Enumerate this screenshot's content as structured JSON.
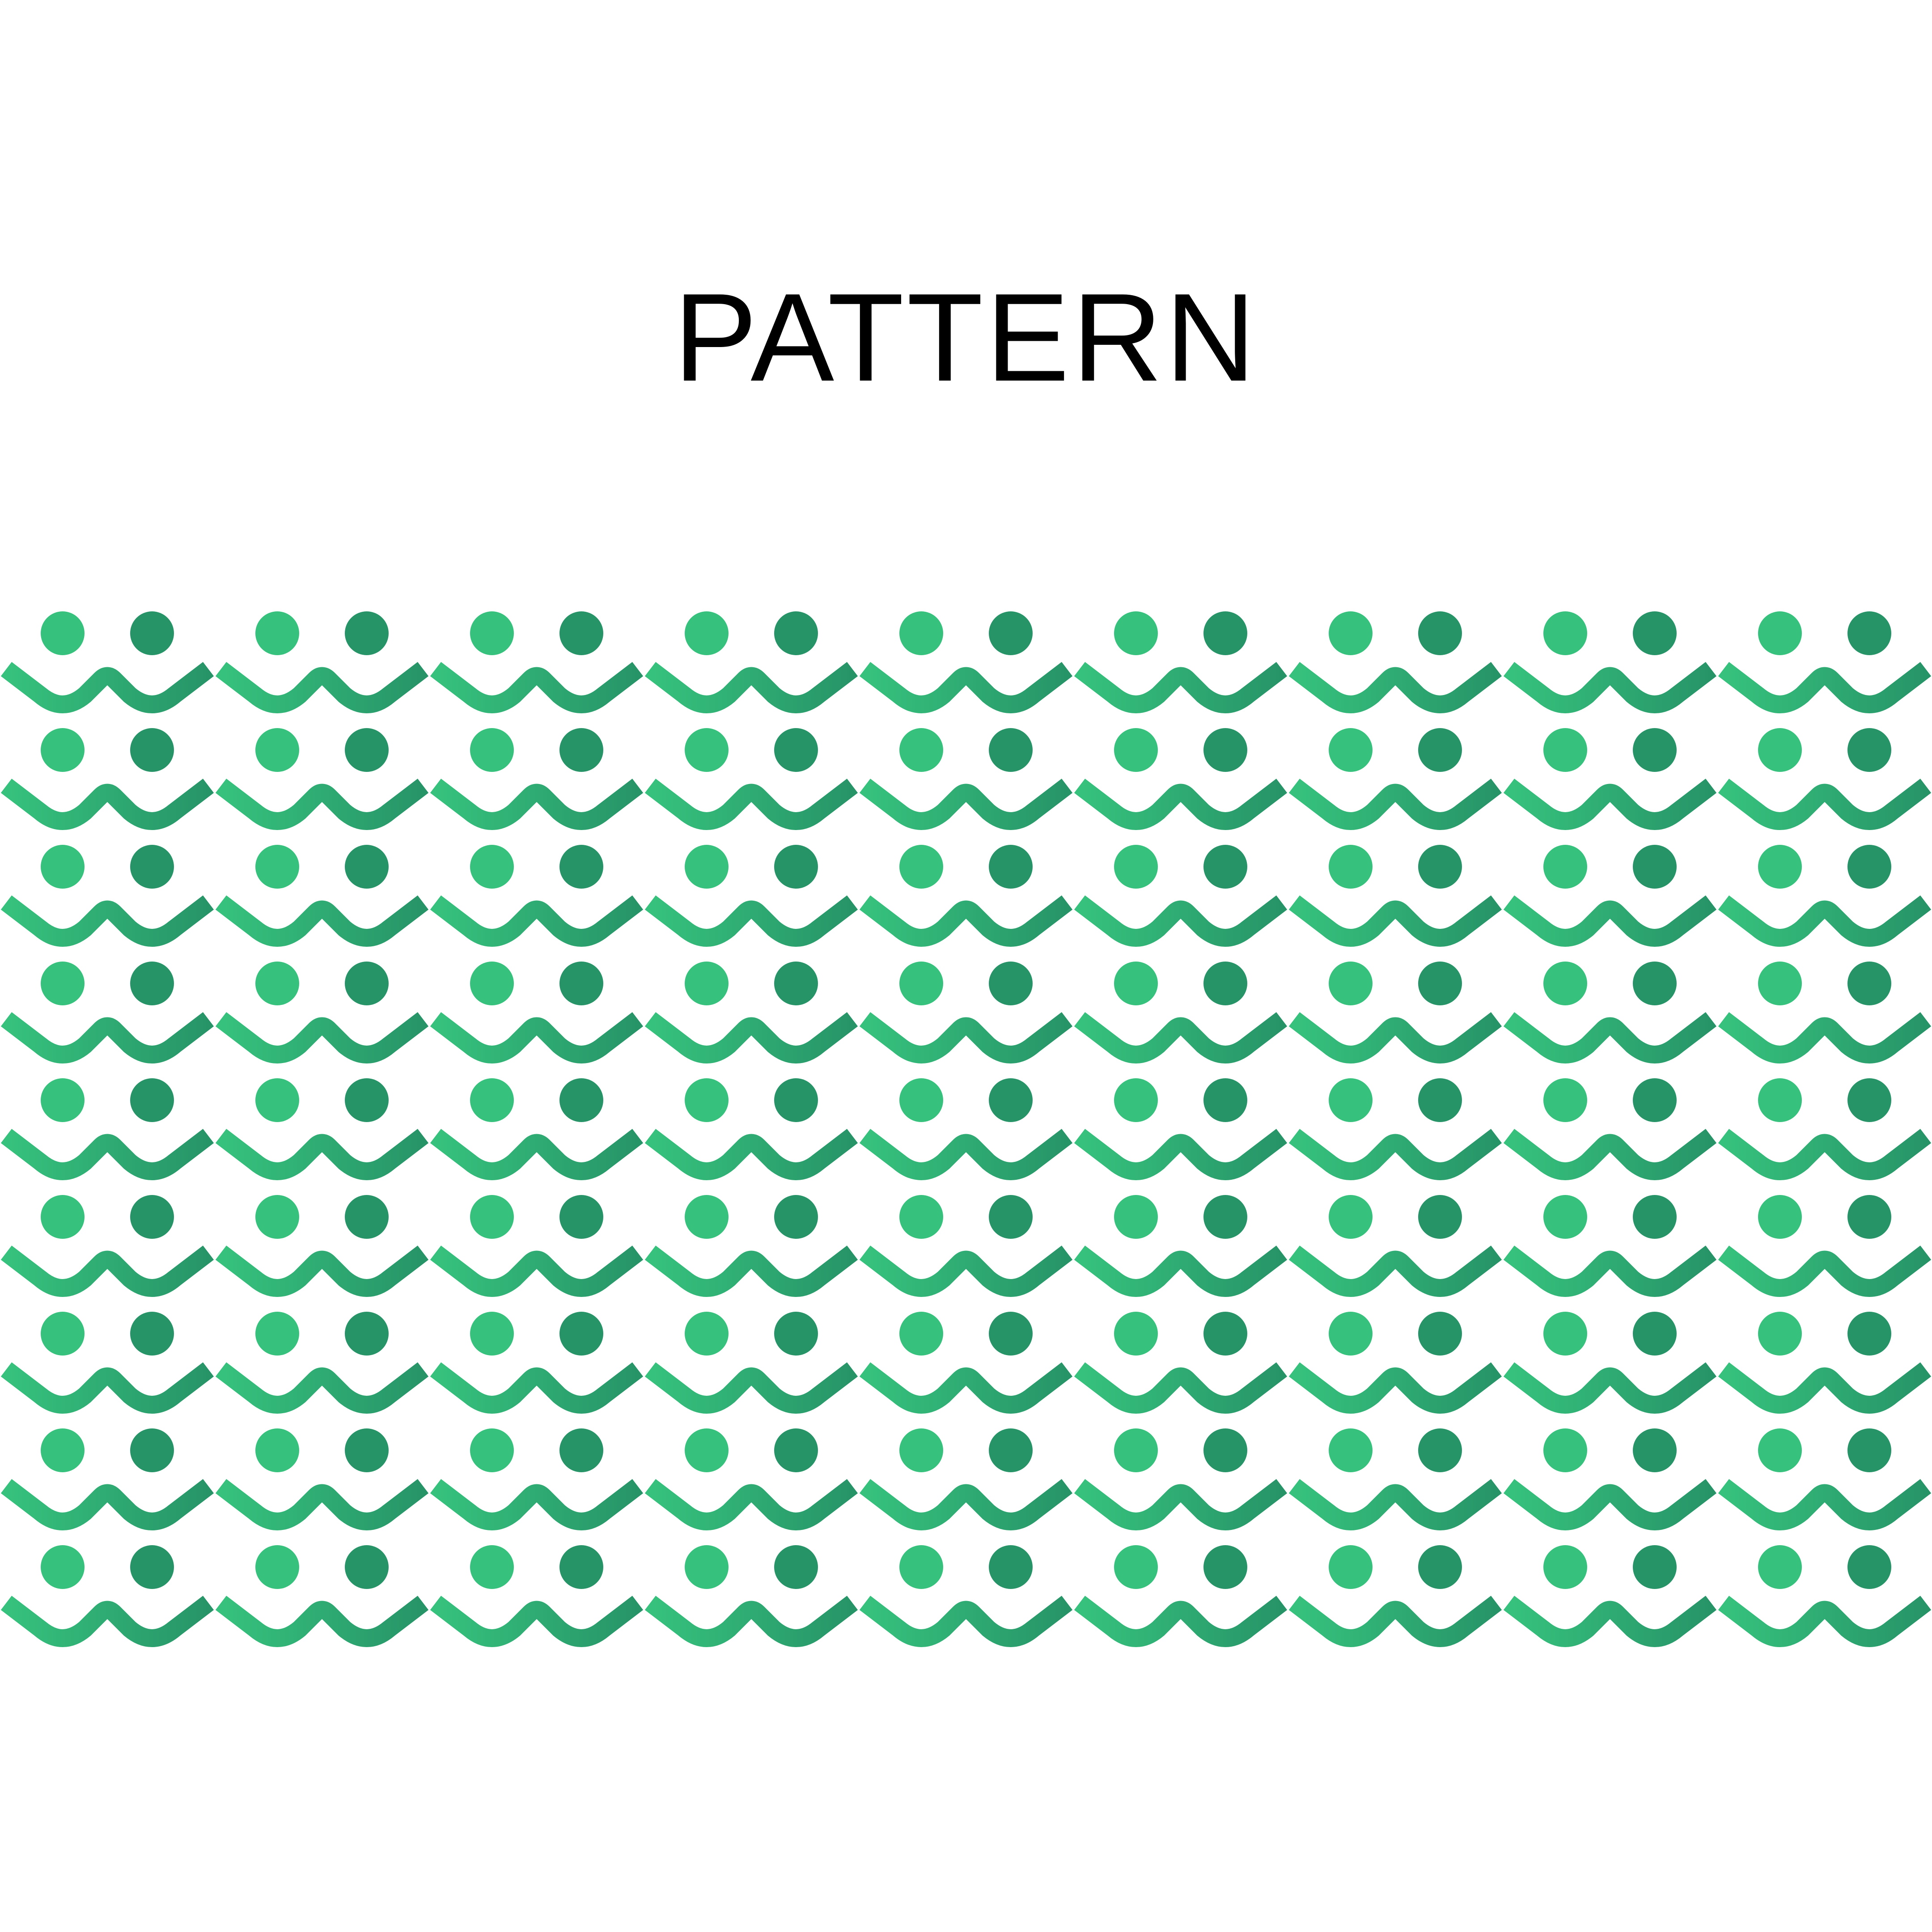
{
  "title": "PATTERN",
  "pattern": {
    "motif": "two-figures-holding-hands",
    "rows": 9,
    "columns": 9,
    "colors": {
      "light": "#36C27D",
      "dark": "#279468"
    }
  }
}
